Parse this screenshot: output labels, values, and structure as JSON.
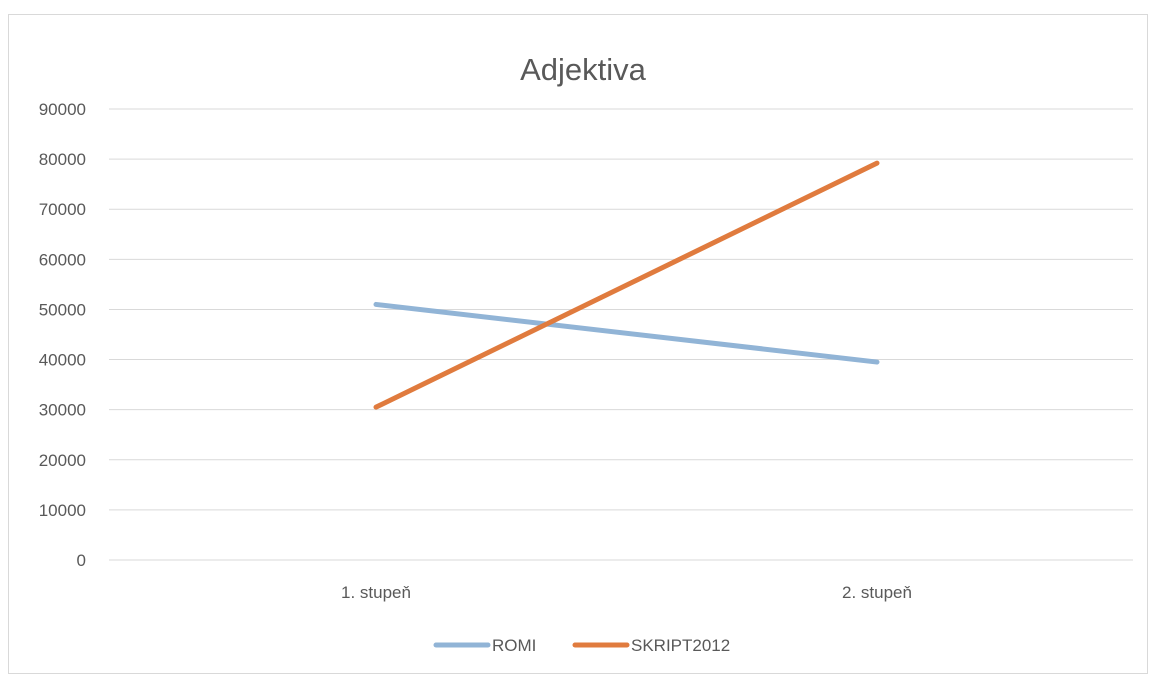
{
  "chart_data": {
    "type": "line",
    "title": "Adjektiva",
    "categories": [
      "1. stupeň",
      "2. stupeň"
    ],
    "series": [
      {
        "name": "ROMI",
        "values": [
          51000,
          39500
        ],
        "color": "#91b4d6"
      },
      {
        "name": "SKRIPT2012",
        "values": [
          30500,
          79200
        ],
        "color": "#e07b3e"
      }
    ],
    "ylim": [
      0,
      90000
    ],
    "yticks": [
      0,
      10000,
      20000,
      30000,
      40000,
      50000,
      60000,
      70000,
      80000,
      90000
    ],
    "grid": true,
    "legend_position": "bottom"
  }
}
